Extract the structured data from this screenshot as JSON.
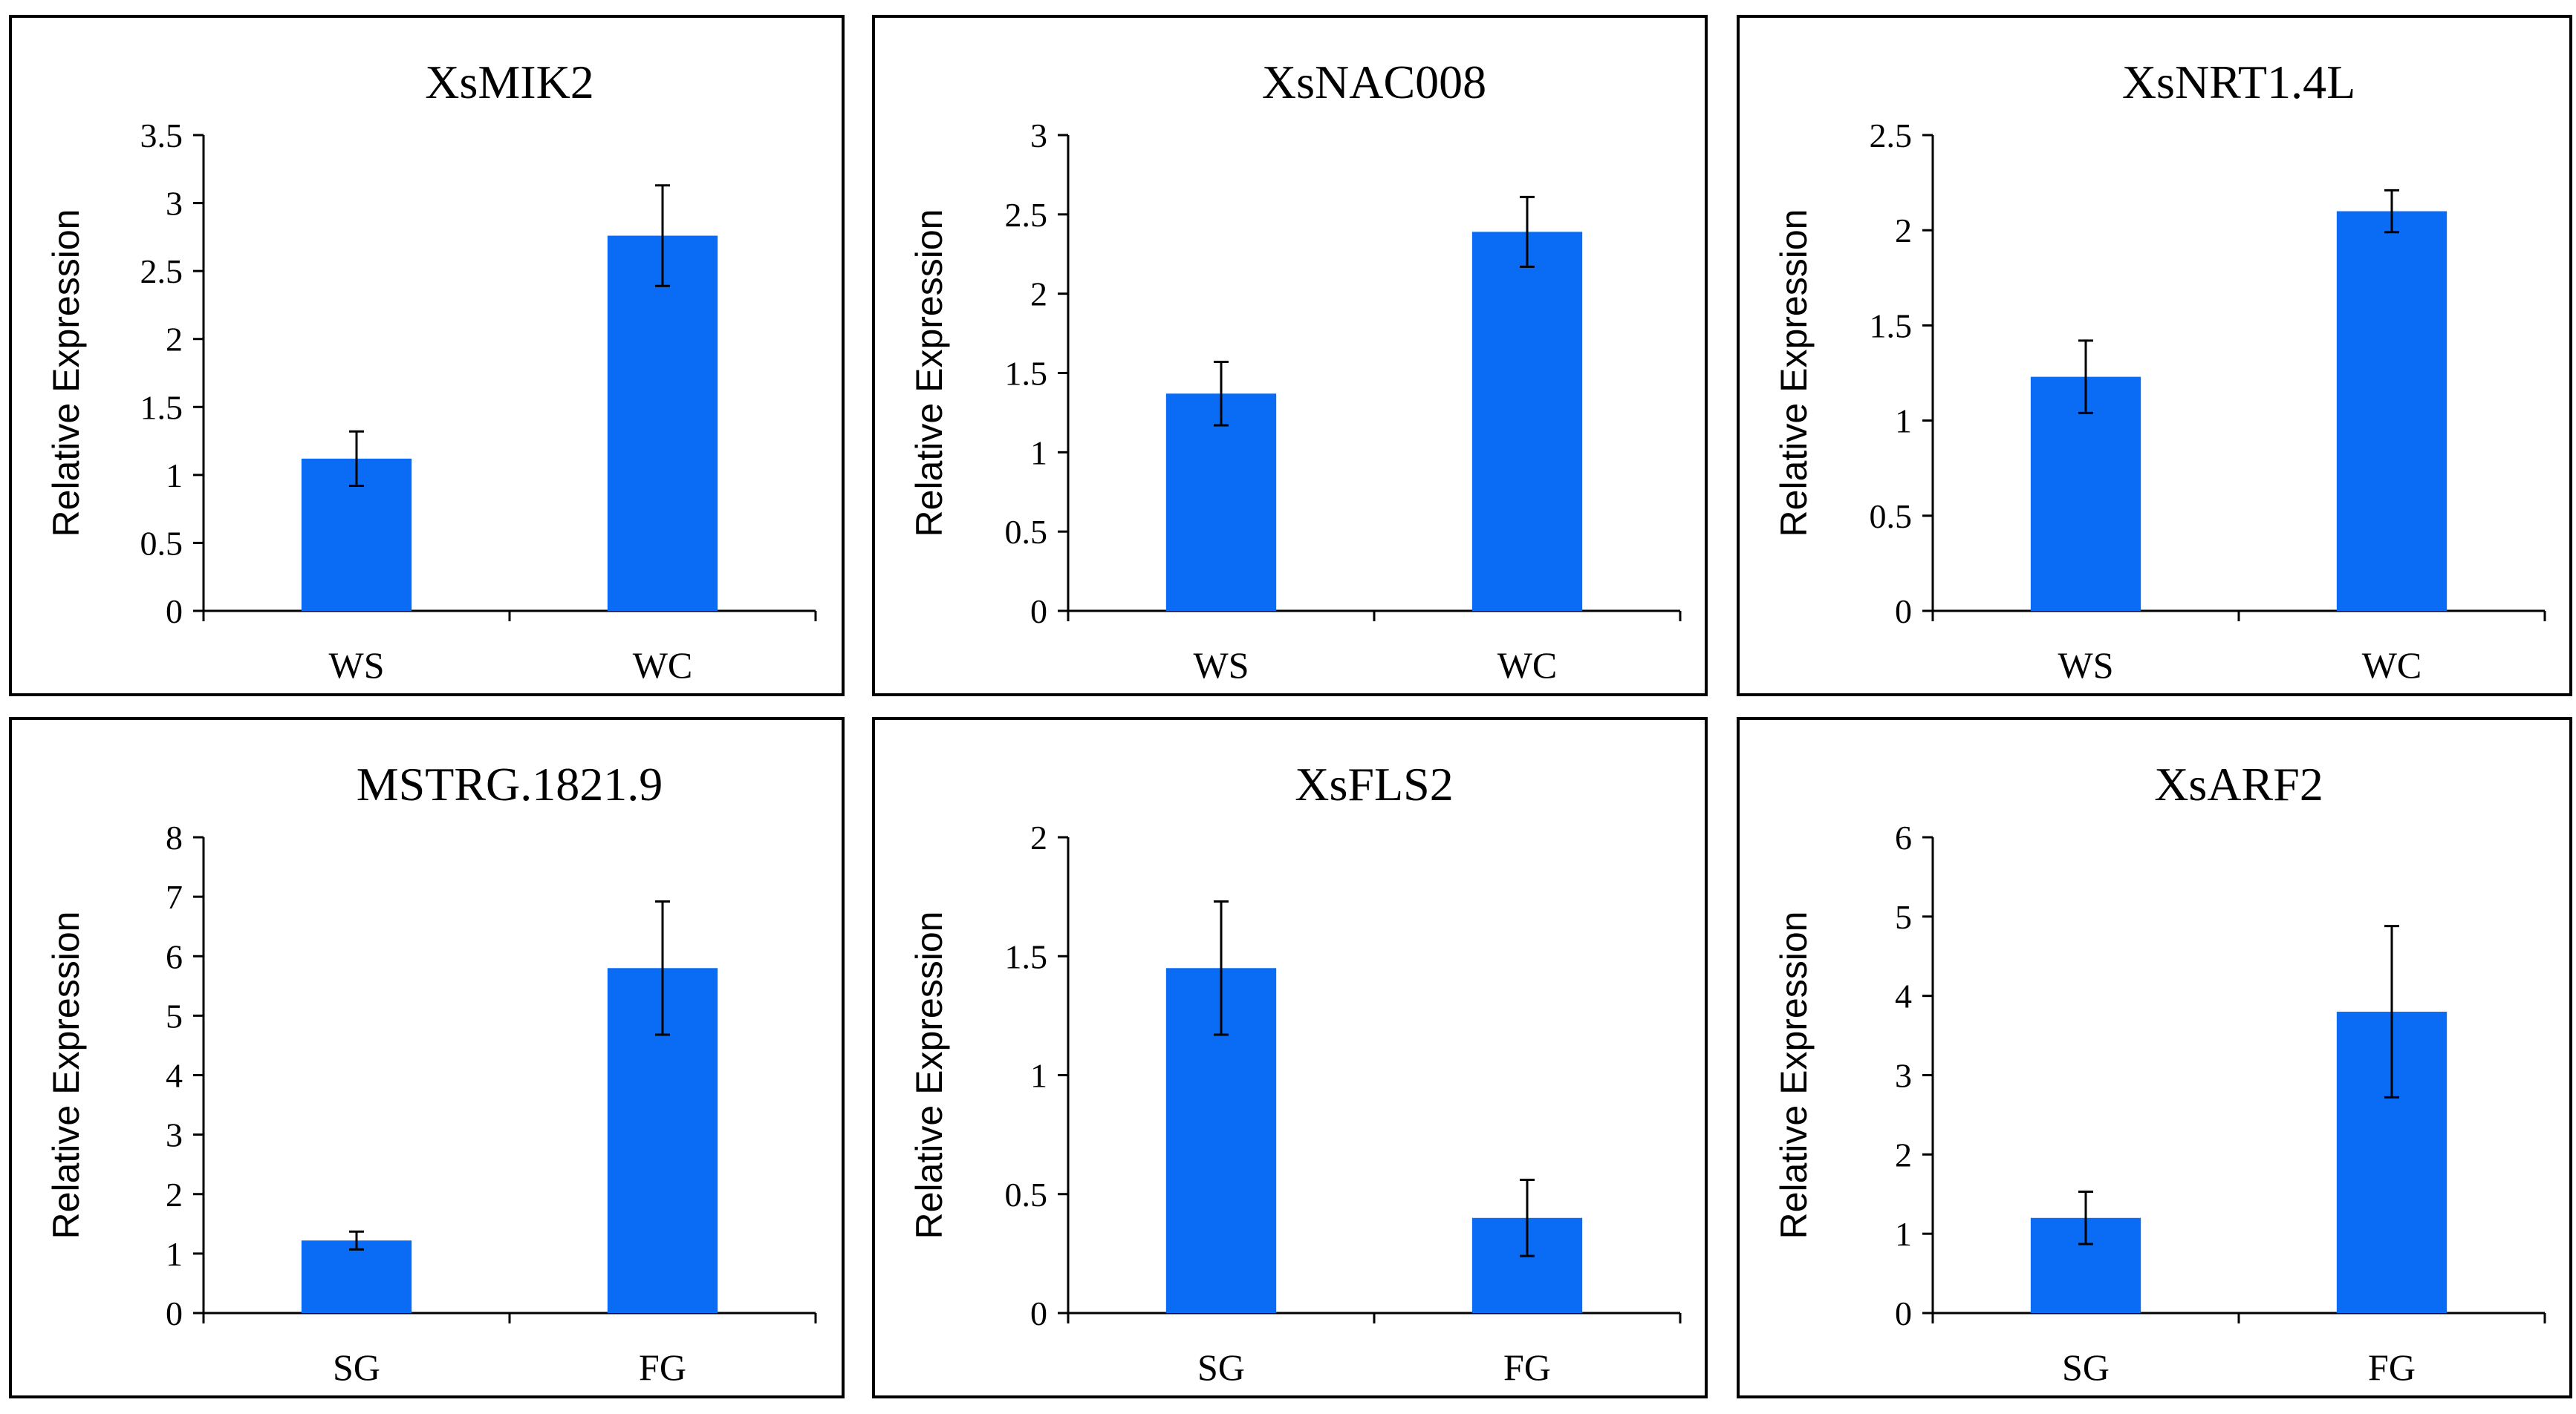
{
  "colors": {
    "bar": "#0a6cf5",
    "axis": "#000000",
    "frame": "#000000",
    "background": "#ffffff"
  },
  "chart_data": [
    {
      "type": "bar",
      "title": "XsMIK2",
      "ylabel": "Relative Expression",
      "categories": [
        "WS",
        "WC"
      ],
      "values": [
        1.12,
        2.76
      ],
      "errors": [
        0.2,
        0.37
      ],
      "ylim": [
        0,
        3.5
      ],
      "yticks": [
        "0",
        "0.5",
        "1",
        "1.5",
        "2",
        "2.5",
        "3",
        "3.5"
      ],
      "grid": false
    },
    {
      "type": "bar",
      "title": "XsNAC008",
      "ylabel": "Relative Expression",
      "categories": [
        "WS",
        "WC"
      ],
      "values": [
        1.37,
        2.39
      ],
      "errors": [
        0.2,
        0.22
      ],
      "ylim": [
        0,
        3
      ],
      "yticks": [
        "0",
        "0.5",
        "1",
        "1.5",
        "2",
        "2.5",
        "3"
      ],
      "grid": false
    },
    {
      "type": "bar",
      "title": "XsNRT1.4L",
      "ylabel": "Relative Expression",
      "categories": [
        "WS",
        "WC"
      ],
      "values": [
        1.23,
        2.1
      ],
      "errors": [
        0.19,
        0.11
      ],
      "ylim": [
        0,
        2.5
      ],
      "yticks": [
        "0",
        "0.5",
        "1",
        "1.5",
        "2",
        "2.5"
      ],
      "grid": false
    },
    {
      "type": "bar",
      "title": "MSTRG.1821.9",
      "ylabel": "Relative Expression",
      "categories": [
        "SG",
        "FG"
      ],
      "values": [
        1.22,
        5.8
      ],
      "errors": [
        0.15,
        1.12
      ],
      "ylim": [
        0,
        8
      ],
      "yticks": [
        "0",
        "1",
        "2",
        "3",
        "4",
        "5",
        "6",
        "7",
        "8"
      ],
      "grid": false
    },
    {
      "type": "bar",
      "title": "XsFLS2",
      "ylabel": "Relative Expression",
      "categories": [
        "SG",
        "FG"
      ],
      "values": [
        1.45,
        0.4
      ],
      "errors": [
        0.28,
        0.16
      ],
      "ylim": [
        0,
        2
      ],
      "yticks": [
        "0",
        "0.5",
        "1",
        "1.5",
        "2"
      ],
      "grid": false
    },
    {
      "type": "bar",
      "title": "XsARF2",
      "ylabel": "Relative Expression",
      "categories": [
        "SG",
        "FG"
      ],
      "values": [
        1.2,
        3.8
      ],
      "errors": [
        0.33,
        1.08
      ],
      "ylim": [
        0,
        6
      ],
      "yticks": [
        "0",
        "1",
        "2",
        "3",
        "4",
        "5",
        "6"
      ],
      "grid": false
    }
  ]
}
